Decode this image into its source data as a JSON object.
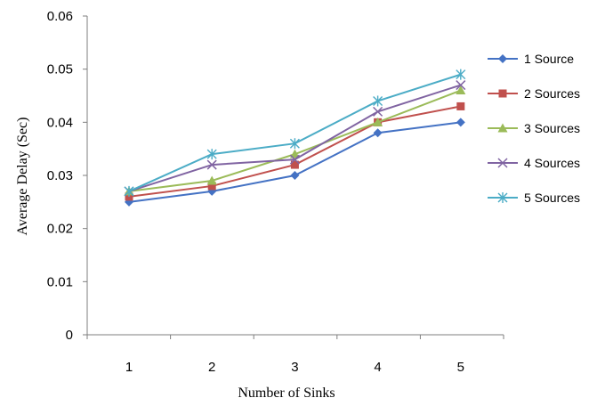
{
  "chart_data": {
    "type": "line",
    "title": "",
    "xlabel": "Number of Sinks",
    "ylabel": "Average Delay (Sec)",
    "x": [
      1,
      2,
      3,
      4,
      5
    ],
    "ylim": [
      0,
      0.06
    ],
    "yticks": [
      "0",
      "0.01",
      "0.02",
      "0.03",
      "0.04",
      "0.05",
      "0.06"
    ],
    "xticks": [
      "1",
      "2",
      "3",
      "4",
      "5"
    ],
    "grid": false,
    "legend_position": "right",
    "series": [
      {
        "name": "1 Source",
        "values": [
          0.025,
          0.027,
          0.03,
          0.038,
          0.04
        ],
        "color": "#4472C4",
        "marker": "diamond"
      },
      {
        "name": "2 Sources",
        "values": [
          0.026,
          0.028,
          0.032,
          0.04,
          0.043
        ],
        "color": "#C0504D",
        "marker": "square"
      },
      {
        "name": "3 Sources",
        "values": [
          0.027,
          0.029,
          0.034,
          0.04,
          0.046
        ],
        "color": "#9BBB59",
        "marker": "triangle"
      },
      {
        "name": "4 Sources",
        "values": [
          0.027,
          0.032,
          0.033,
          0.042,
          0.047
        ],
        "color": "#8064A2",
        "marker": "x"
      },
      {
        "name": "5 Sources",
        "values": [
          0.027,
          0.034,
          0.036,
          0.044,
          0.049
        ],
        "color": "#4BACC6",
        "marker": "star"
      }
    ]
  }
}
